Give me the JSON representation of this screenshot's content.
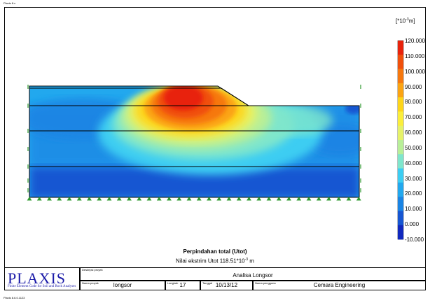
{
  "app": {
    "title": "Plaxis 8.x",
    "version": "Plaxis 8.6.0.1123"
  },
  "legend": {
    "unit_prefix": "[*10",
    "unit_exponent": "-3",
    "unit_suffix": "m]",
    "labels": [
      "120.000",
      "110.000",
      "100.000",
      "90.000",
      "80.000",
      "70.000",
      "60.000",
      "50.000",
      "40.000",
      "30.000",
      "20.000",
      "10.000",
      "0.000",
      "-10.000"
    ]
  },
  "caption": {
    "title": "Perpindahan total (Utot)",
    "extreme_text": "Nilai ekstrim Utot 118.51*10",
    "extreme_exponent": "-3",
    "extreme_unit": " m"
  },
  "title_block": {
    "logo": "PLAXIS",
    "logo_subtitle": "Finite Element Code for Soil and Rock Analyses",
    "description_label": "Deskripsi proyek",
    "description": "Analisa Longsor",
    "project_name_label": "Nama proyek",
    "project_name": "longsor",
    "step_label": "Langkah",
    "step": "17",
    "date_label": "Tanggal",
    "date": "10/13/12",
    "user_label": "Nama pengguna",
    "user": "Cemara Engineering"
  },
  "colors": {
    "scale": [
      "#e8230c",
      "#f0500c",
      "#f6780e",
      "#fba412",
      "#fdd51a",
      "#fbee3a",
      "#e6f268",
      "#b8ef98",
      "#7fe6cc",
      "#3ccdf2",
      "#22a8ee",
      "#1a84e4",
      "#1656d2",
      "#1028be"
    ]
  }
}
